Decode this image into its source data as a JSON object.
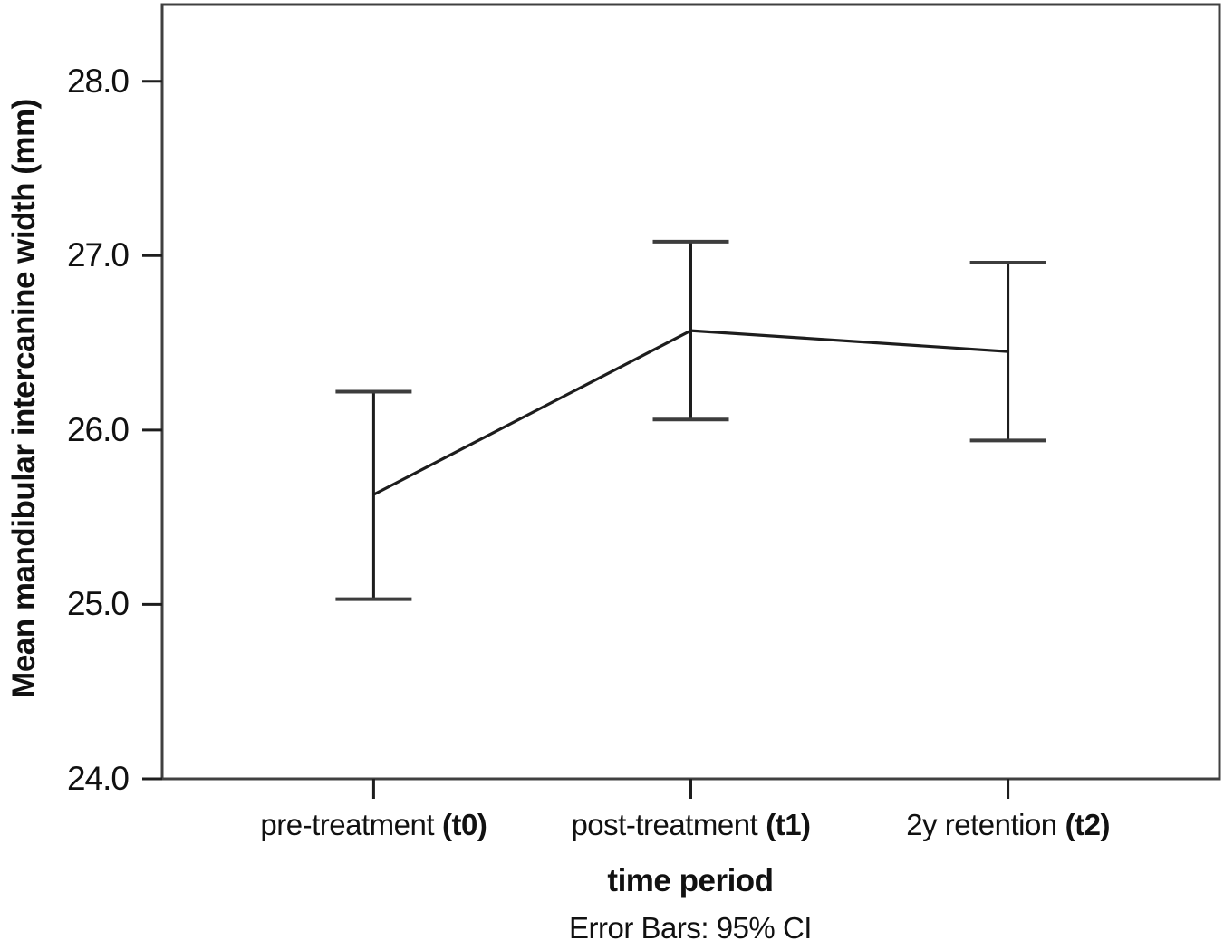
{
  "chart_data": {
    "type": "line",
    "title": "",
    "ylabel": "Mean mandibular intercanine width (mm)",
    "xlabel": "time period",
    "annotation": "Error Bars: 95% CI",
    "ylim": [
      24.0,
      28.44
    ],
    "y_tick_values": [
      28.0,
      27.0,
      26.0,
      25.0,
      24.0
    ],
    "y_tick_labels": [
      "28.0",
      "27.0",
      "26.0",
      "25.0",
      "24.0"
    ],
    "categories": [
      {
        "label": "pre-treatment",
        "tag": "(t0)"
      },
      {
        "label": "post-treatment",
        "tag": "(t1)"
      },
      {
        "label": "2y retention",
        "tag": "(t2)"
      }
    ],
    "series": [
      {
        "name": "Mean mandibular intercanine width (mm)",
        "means": [
          25.63,
          26.57,
          26.45
        ],
        "ci_low": [
          25.03,
          26.06,
          25.94
        ],
        "ci_high": [
          26.22,
          27.08,
          26.96
        ],
        "ci_level": "95% CI"
      }
    ],
    "legend": "none",
    "grid": false,
    "colors": {
      "line": "#1d1d1d",
      "error_bar": "#1d1d1d",
      "error_cap": "#3d3d3d",
      "frame": "#404040",
      "text": "#111111",
      "background": "#ffffff"
    }
  }
}
